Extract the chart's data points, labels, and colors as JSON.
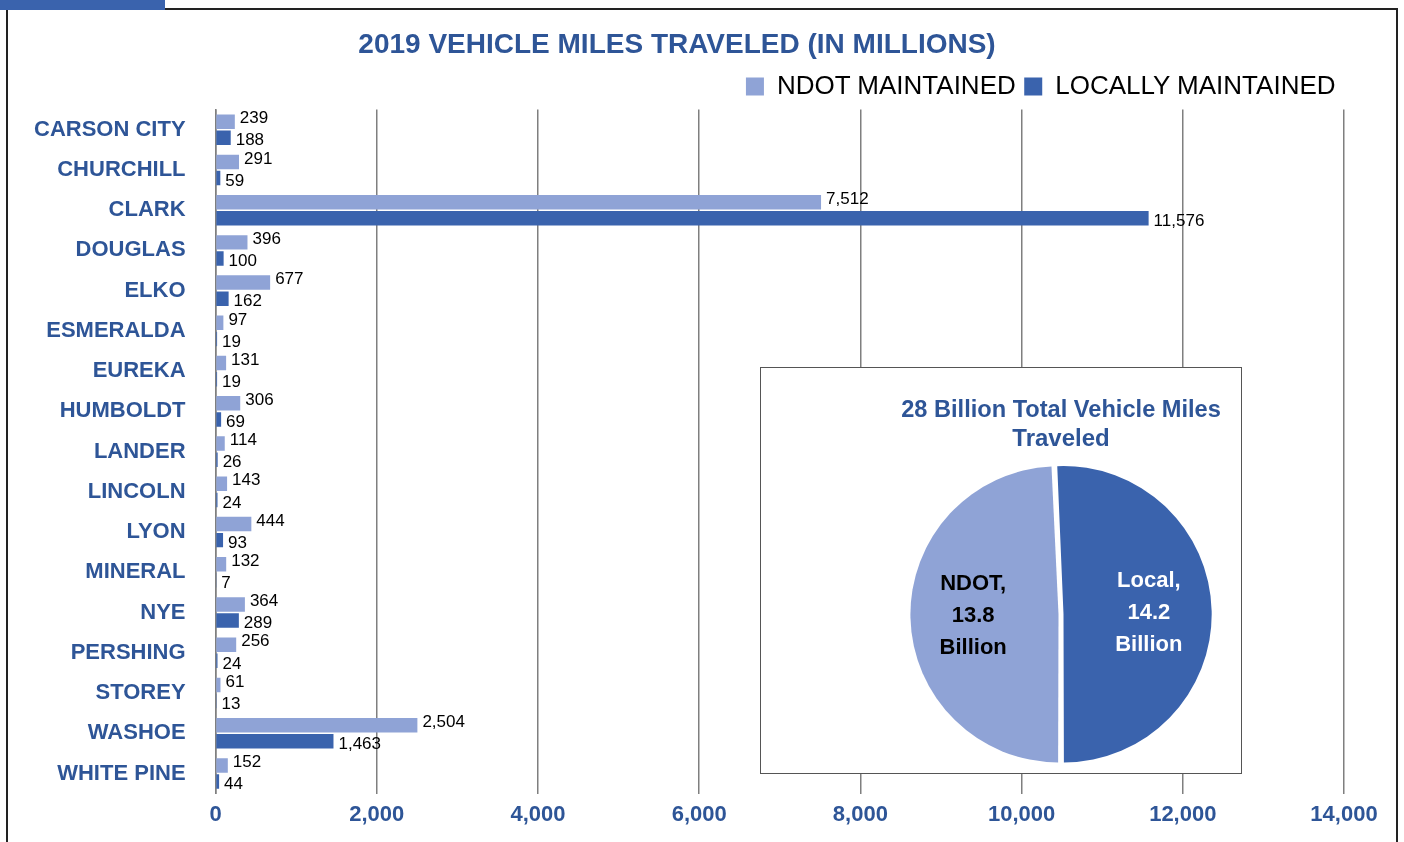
{
  "chart_data": [
    {
      "type": "bar",
      "orientation": "horizontal",
      "title": "2019 VEHICLE MILES TRAVELED (IN MILLIONS)",
      "categories": [
        "CARSON CITY",
        "CHURCHILL",
        "CLARK",
        "DOUGLAS",
        "ELKO",
        "ESMERALDA",
        "EUREKA",
        "HUMBOLDT",
        "LANDER",
        "LINCOLN",
        "LYON",
        "MINERAL",
        "NYE",
        "PERSHING",
        "STOREY",
        "WASHOE",
        "WHITE PINE"
      ],
      "series": [
        {
          "name": "NDOT MAINTAINED",
          "color": "#8fa3d6",
          "values": [
            239,
            291,
            7512,
            396,
            677,
            97,
            131,
            306,
            114,
            143,
            444,
            132,
            364,
            256,
            61,
            2504,
            152
          ],
          "value_labels": [
            "239",
            "291",
            "7,512",
            "396",
            "677",
            "97",
            "131",
            "306",
            "114",
            "143",
            "444",
            "132",
            "364",
            "256",
            "61",
            "2,504",
            "152"
          ]
        },
        {
          "name": "LOCALLY MAINTAINED",
          "color": "#3a63ad",
          "values": [
            188,
            59,
            11576,
            100,
            162,
            19,
            19,
            69,
            26,
            24,
            93,
            7,
            289,
            24,
            13,
            1463,
            44
          ],
          "value_labels": [
            "188",
            "59",
            "11,576",
            "100",
            "162",
            "19",
            "19",
            "69",
            "26",
            "24",
            "93",
            "7",
            "289",
            "24",
            "13",
            "1,463",
            "44"
          ]
        }
      ],
      "xlim": [
        0,
        14000
      ],
      "xticks": [
        0,
        {
          "value": 2000,
          "label": "2,000"
        },
        {
          "value": 4000,
          "label": "4,000"
        },
        {
          "value": 6000,
          "label": "6,000"
        },
        {
          "value": 8000,
          "label": "8,000"
        },
        {
          "value": 10000,
          "label": "10,000"
        },
        {
          "value": 12000,
          "label": "12,000"
        },
        {
          "value": 14000,
          "label": "14,000"
        }
      ],
      "grid": "x",
      "legend": "top right"
    },
    {
      "type": "pie",
      "title": "28 Billion Total Vehicle Miles Traveled",
      "categories": [
        "NDOT",
        "Local"
      ],
      "values": [
        13.8,
        14.2
      ],
      "colors": [
        "#8fa3d6",
        "#3a63ad"
      ],
      "value_labels": [
        ", 13.8 Billion",
        ", 14.2 Billion"
      ],
      "legend": false
    }
  ]
}
